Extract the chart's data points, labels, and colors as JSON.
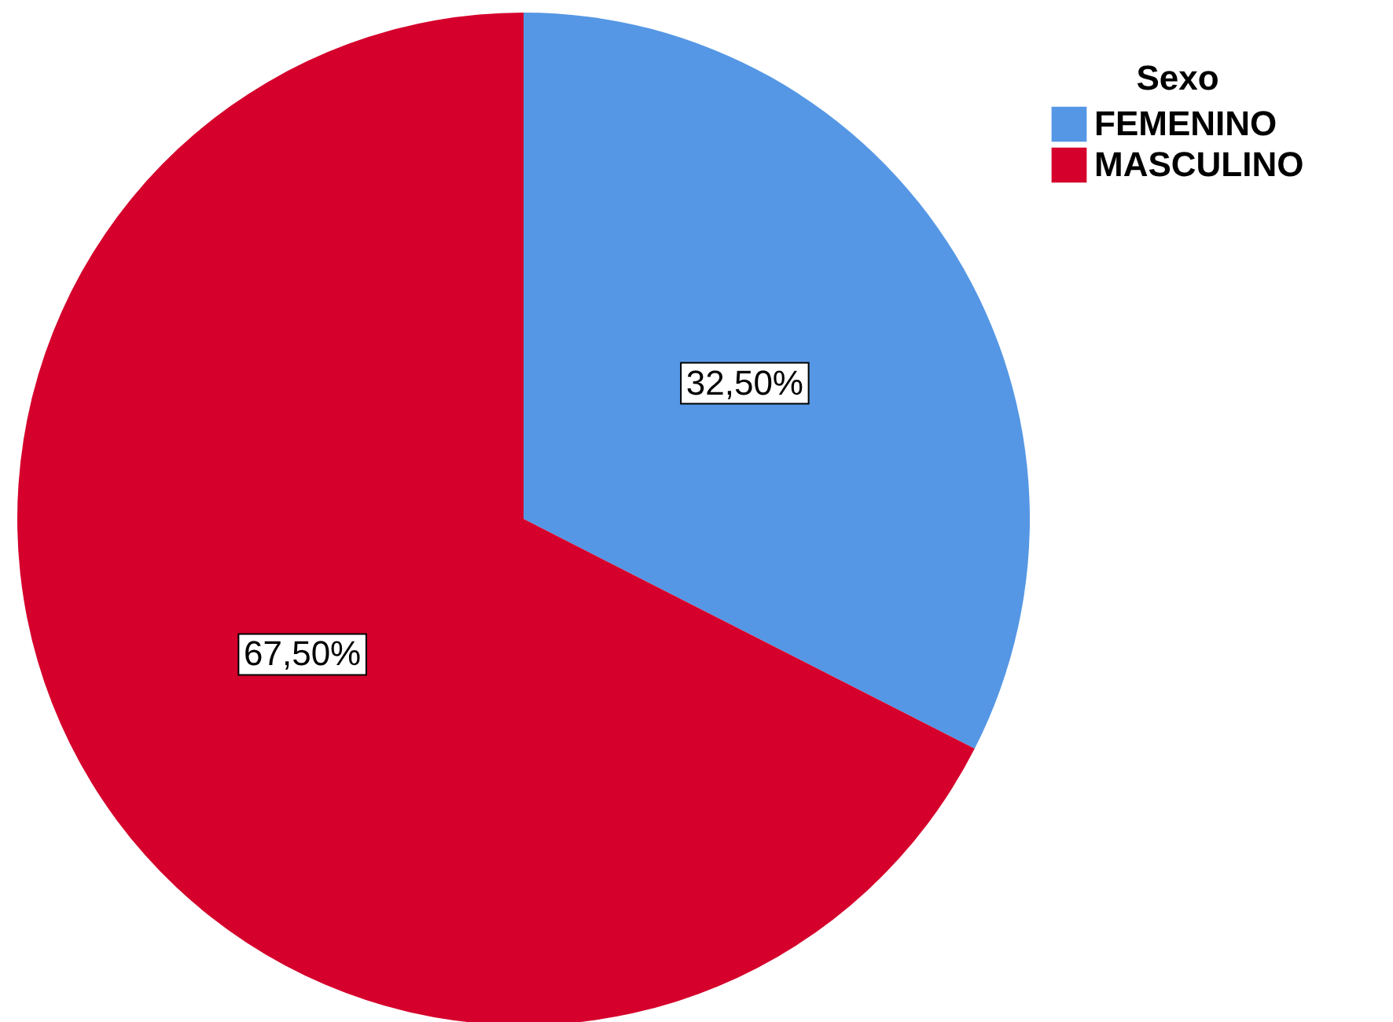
{
  "chart_data": {
    "type": "pie",
    "legend_title": "Sexo",
    "legend": "top right",
    "categories": [
      "FEMENINO",
      "MASCULINO"
    ],
    "values": [
      32.5,
      67.5
    ],
    "colors": [
      "#5597e4",
      "#d5002c"
    ],
    "value_labels": [
      "32,50%",
      "67,50%"
    ]
  }
}
